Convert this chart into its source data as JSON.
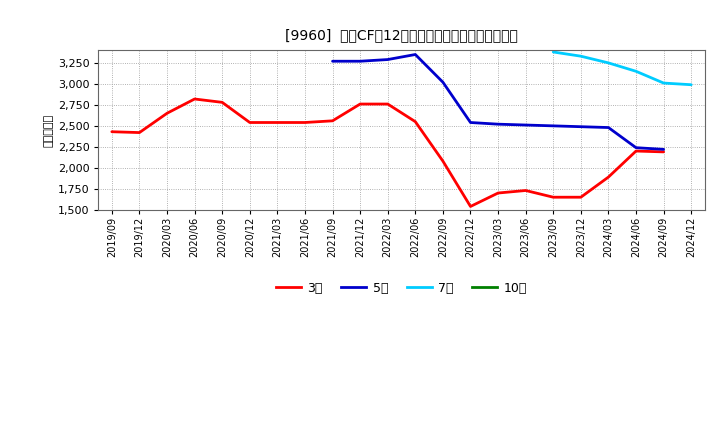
{
  "title": "[9960]  営業CFの12か月移動合計の標準偏差の推移",
  "ylabel": "（百万円）",
  "background_color": "#ffffff",
  "plot_background_color": "#ffffff",
  "grid_color": "#aaaaaa",
  "ylim": [
    1500,
    3400
  ],
  "yticks": [
    1500,
    1750,
    2000,
    2250,
    2500,
    2750,
    3000,
    3250
  ],
  "series": {
    "3年": {
      "color": "#ff0000",
      "x": [
        "2019/09",
        "2019/12",
        "2020/03",
        "2020/06",
        "2020/09",
        "2020/12",
        "2021/03",
        "2021/06",
        "2021/09",
        "2021/12",
        "2022/03",
        "2022/06",
        "2022/09",
        "2022/12",
        "2023/03",
        "2023/06",
        "2023/09",
        "2023/12",
        "2024/03",
        "2024/06",
        "2024/09"
      ],
      "y": [
        2430,
        2420,
        2650,
        2820,
        2780,
        2540,
        2540,
        2540,
        2560,
        2760,
        2760,
        2550,
        2080,
        1540,
        1700,
        1730,
        1650,
        1650,
        1890,
        2200,
        2190
      ]
    },
    "5年": {
      "color": "#0000cc",
      "x": [
        "2021/09",
        "2021/12",
        "2022/03",
        "2022/06",
        "2022/09",
        "2022/12",
        "2023/03",
        "2023/06",
        "2023/09",
        "2023/12",
        "2024/03",
        "2024/06",
        "2024/09"
      ],
      "y": [
        3270,
        3270,
        3290,
        3350,
        3020,
        2540,
        2520,
        2510,
        2500,
        2490,
        2480,
        2240,
        2220
      ]
    },
    "7年": {
      "color": "#00ccff",
      "x": [
        "2023/09",
        "2023/12",
        "2024/03",
        "2024/06",
        "2024/09",
        "2024/12"
      ],
      "y": [
        3380,
        3330,
        3250,
        3150,
        3010,
        2990
      ]
    },
    "10年": {
      "color": "#008000",
      "x": [],
      "y": []
    }
  },
  "legend_labels": [
    "3年",
    "5年",
    "7年",
    "10年"
  ],
  "legend_colors": [
    "#ff0000",
    "#0000cc",
    "#00ccff",
    "#008000"
  ],
  "xtick_labels": [
    "2019/09",
    "2019/12",
    "2020/03",
    "2020/06",
    "2020/09",
    "2020/12",
    "2021/03",
    "2021/06",
    "2021/09",
    "2021/12",
    "2022/03",
    "2022/06",
    "2022/09",
    "2022/12",
    "2023/03",
    "2023/06",
    "2023/09",
    "2023/12",
    "2024/03",
    "2024/06",
    "2024/09",
    "2024/12"
  ]
}
